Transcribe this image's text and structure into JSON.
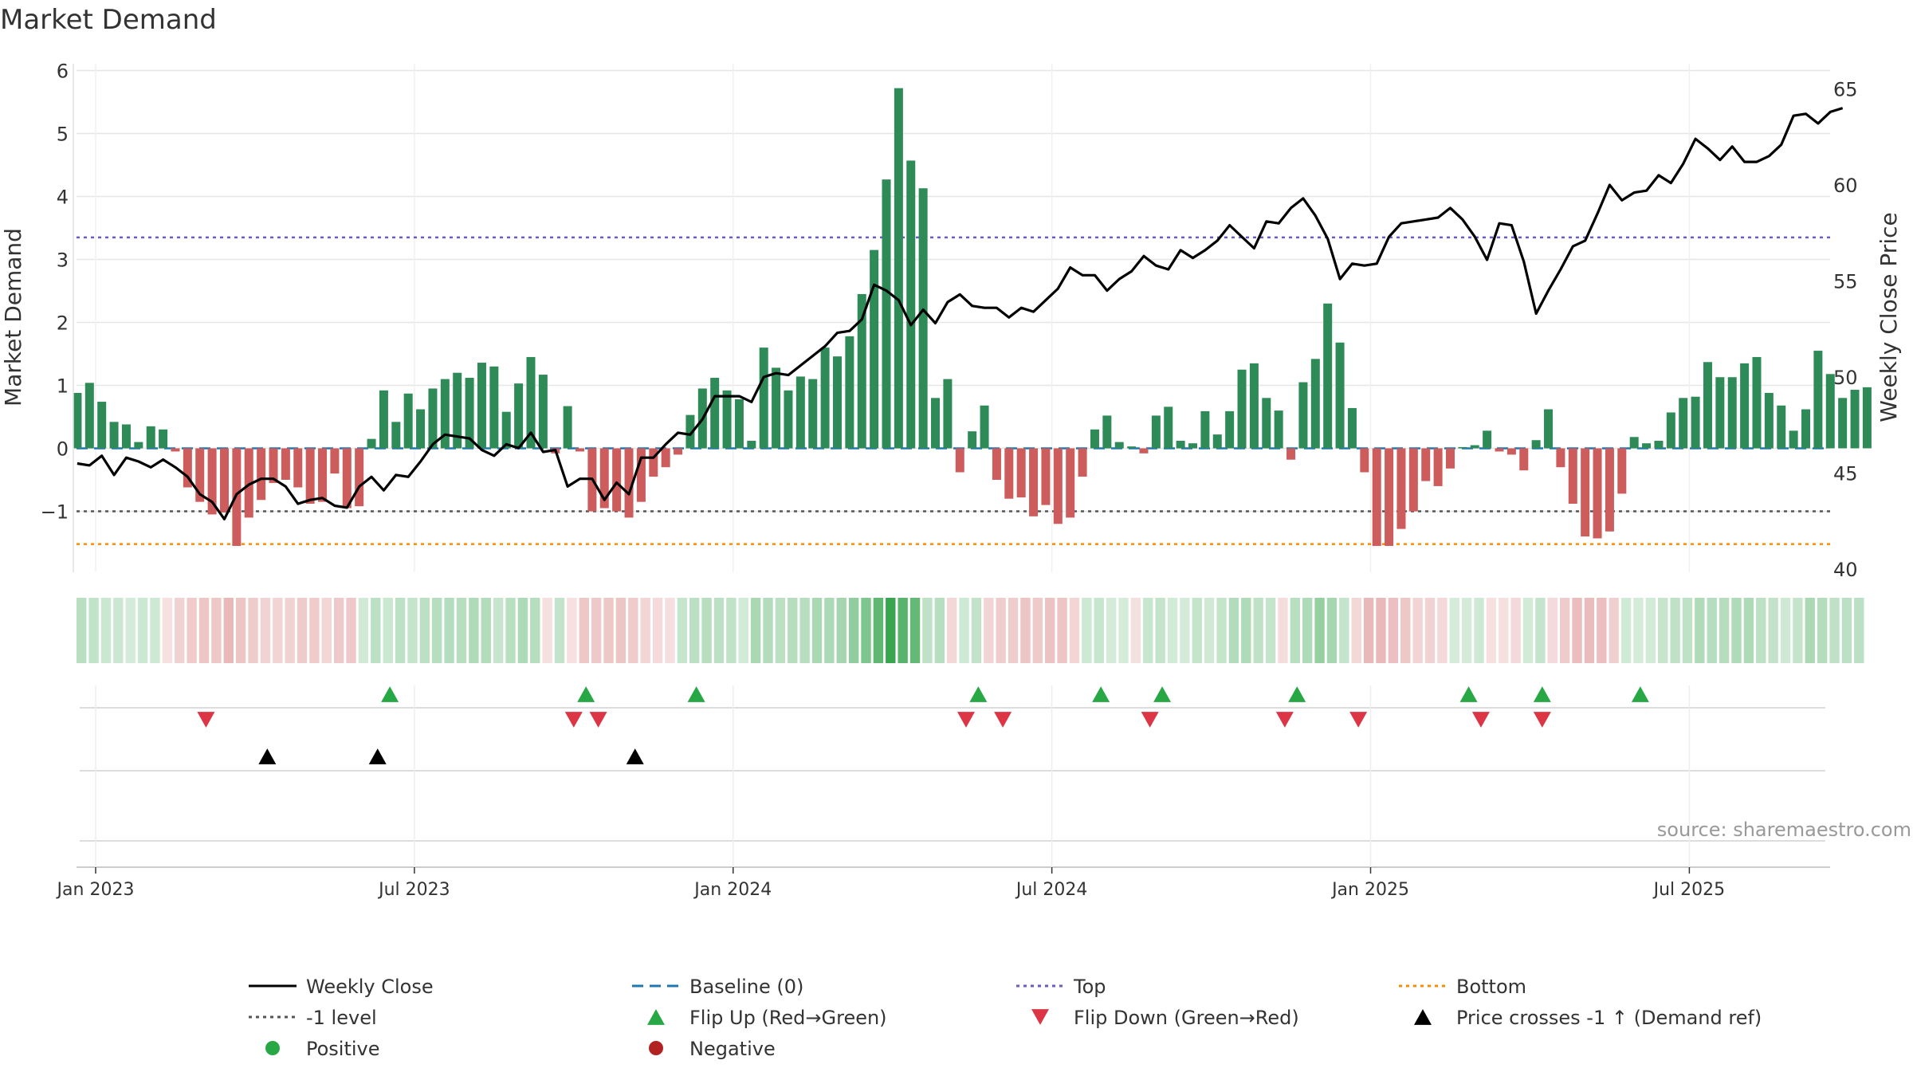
{
  "chart_data": {
    "type": "bar+line",
    "title": "Market Demand",
    "ylabel_left": "Market Demand",
    "ylabel_right": "Weekly Close Price",
    "ylim_left": [
      -2,
      6
    ],
    "ylim_right": [
      40,
      66
    ],
    "yticks_left": [
      {
        "value": 6,
        "label": "6"
      },
      {
        "value": 5,
        "label": "5"
      },
      {
        "value": 4,
        "label": "4"
      },
      {
        "value": 3,
        "label": "3"
      },
      {
        "value": 2,
        "label": "2"
      },
      {
        "value": 1,
        "label": "1"
      },
      {
        "value": 0,
        "label": "0"
      },
      {
        "value": -1,
        "label": "−1"
      }
    ],
    "yticks_right": [
      {
        "value": 65,
        "label": "65"
      },
      {
        "value": 60,
        "label": "60"
      },
      {
        "value": 55,
        "label": "55"
      },
      {
        "value": 50,
        "label": "50"
      },
      {
        "value": 45,
        "label": "45"
      },
      {
        "value": 40,
        "label": "40"
      }
    ],
    "xticks": [
      {
        "index": 0,
        "label": "Jan 2023"
      },
      {
        "index": 26,
        "label": "Jul 2023"
      },
      {
        "index": 52,
        "label": "Jan 2024"
      },
      {
        "index": 78,
        "label": "Jul 2024"
      },
      {
        "index": 104,
        "label": "Jan 2025"
      },
      {
        "index": 130,
        "label": "Jul 2025"
      }
    ],
    "week_offset": -1.5,
    "reference_lines": {
      "baseline": 0,
      "top": 3.35,
      "minus_one": -1,
      "bottom": -1.52
    },
    "demand": [
      0.88,
      1.04,
      0.74,
      0.42,
      0.38,
      0.1,
      0.35,
      0.3,
      -0.05,
      -0.62,
      -0.85,
      -1.05,
      -1.02,
      -1.55,
      -1.1,
      -0.82,
      -0.55,
      -0.5,
      -0.62,
      -0.88,
      -0.85,
      -0.4,
      -0.95,
      -0.92,
      0.15,
      0.92,
      0.42,
      0.87,
      0.62,
      0.95,
      1.1,
      1.2,
      1.12,
      1.36,
      1.3,
      0.58,
      1.03,
      1.45,
      1.17,
      -0.08,
      0.67,
      -0.05,
      -1.0,
      -0.95,
      -1.0,
      -1.1,
      -0.85,
      -0.45,
      -0.3,
      -0.1,
      0.53,
      0.95,
      1.12,
      0.92,
      0.78,
      0.12,
      1.6,
      1.28,
      0.92,
      1.14,
      1.1,
      1.6,
      1.46,
      1.78,
      2.45,
      3.15,
      4.27,
      5.72,
      4.57,
      4.13,
      0.8,
      1.1,
      -0.38,
      0.27,
      0.68,
      -0.5,
      -0.8,
      -0.78,
      -1.08,
      -0.9,
      -1.2,
      -1.1,
      -0.45,
      0.3,
      0.52,
      0.1,
      0.03,
      -0.08,
      0.52,
      0.66,
      0.12,
      0.08,
      0.59,
      0.22,
      0.59,
      1.25,
      1.35,
      0.8,
      0.6,
      -0.18,
      1.05,
      1.42,
      2.3,
      1.68,
      0.64,
      -0.38,
      -1.55,
      -1.55,
      -1.28,
      -1.0,
      -0.52,
      -0.6,
      -0.32,
      0.02,
      0.05,
      0.28,
      -0.05,
      -0.1,
      -0.35,
      0.13,
      0.62,
      -0.3,
      -0.88,
      -1.4,
      -1.43,
      -1.32,
      -0.72,
      0.18,
      0.08,
      0.12,
      0.57,
      0.8,
      0.82,
      1.37,
      1.13,
      1.13,
      1.35,
      1.45,
      0.88,
      0.68,
      0.28,
      0.62,
      1.55,
      1.18,
      0.8,
      0.93,
      0.97
    ],
    "close": [
      45.5,
      45.4,
      45.9,
      44.9,
      45.8,
      45.6,
      45.3,
      45.7,
      45.3,
      44.8,
      43.9,
      43.5,
      42.6,
      43.9,
      44.4,
      44.7,
      44.7,
      44.3,
      43.4,
      43.6,
      43.7,
      43.3,
      43.2,
      44.3,
      44.8,
      44.1,
      44.9,
      44.8,
      45.6,
      46.5,
      47.0,
      46.9,
      46.8,
      46.2,
      45.9,
      46.5,
      46.3,
      47.1,
      46.1,
      46.2,
      44.3,
      44.7,
      44.7,
      43.6,
      44.5,
      43.9,
      45.8,
      45.8,
      46.5,
      47.1,
      47.0,
      47.8,
      49.0,
      49.0,
      49.0,
      48.7,
      50.0,
      50.2,
      50.1,
      50.6,
      51.1,
      51.6,
      52.3,
      52.4,
      53.0,
      54.8,
      54.5,
      54.0,
      52.7,
      53.5,
      52.8,
      53.9,
      54.3,
      53.7,
      53.6,
      53.6,
      53.1,
      53.6,
      53.4,
      54.0,
      54.6,
      55.7,
      55.3,
      55.3,
      54.5,
      55.1,
      55.5,
      56.3,
      55.8,
      55.6,
      56.6,
      56.2,
      56.6,
      57.1,
      57.9,
      57.3,
      56.7,
      58.1,
      58.0,
      58.8,
      59.3,
      58.4,
      57.2,
      55.1,
      55.9,
      55.8,
      55.9,
      57.3,
      58.0,
      58.1,
      58.2,
      58.3,
      58.8,
      58.2,
      57.3,
      56.1,
      58.0,
      57.9,
      56.0,
      53.3,
      54.5,
      55.6,
      56.8,
      57.1,
      58.5,
      60.0,
      59.2,
      59.6,
      59.7,
      60.5,
      60.1,
      61.1,
      62.4,
      61.9,
      61.3,
      62.0,
      61.2,
      61.2,
      61.5,
      62.1,
      63.6,
      63.7,
      63.2,
      63.8,
      64.0
    ],
    "heat_strip": [
      1.04,
      0.74,
      0.42,
      0.38,
      0.1,
      0.35,
      0.3,
      -0.05,
      -0.62,
      -0.85,
      -1.05,
      -1.02,
      -1.55,
      -1.1,
      -0.82,
      -0.55,
      -0.5,
      -0.62,
      -0.88,
      -0.85,
      -0.4,
      -0.95,
      -0.92,
      0.15,
      0.92,
      0.42,
      0.87,
      0.62,
      0.95,
      1.1,
      1.2,
      1.12,
      1.36,
      1.3,
      0.58,
      1.03,
      1.45,
      1.17,
      -0.08,
      0.67,
      -0.05,
      -1.0,
      -0.95,
      -1.0,
      -1.1,
      -0.85,
      -0.45,
      -0.3,
      -0.1,
      0.53,
      0.95,
      1.12,
      0.92,
      0.78,
      0.12,
      1.6,
      1.28,
      0.92,
      1.14,
      1.1,
      1.6,
      1.46,
      1.78,
      2.45,
      3.15,
      4.27,
      5.72,
      4.57,
      4.13,
      0.8,
      1.1,
      -0.38,
      0.27,
      0.68,
      -0.5,
      -0.8,
      -0.78,
      -1.08,
      -0.9,
      -1.2,
      -1.1,
      -0.45,
      0.3,
      0.52,
      0.1,
      0.03,
      -0.08,
      0.52,
      0.66,
      0.12,
      0.08,
      0.59,
      0.22,
      0.59,
      1.25,
      1.35,
      0.8,
      0.6,
      -0.18,
      1.05,
      1.42,
      2.3,
      1.68,
      0.64,
      -0.38,
      -1.55,
      -1.55,
      -1.28,
      -1.0,
      -0.52,
      -0.6,
      -0.32,
      0.02,
      0.05,
      0.28,
      -0.05,
      -0.1,
      -0.35,
      0.13,
      0.62,
      -0.3,
      -0.88,
      -1.4,
      -1.43,
      -1.32,
      -0.72,
      0.18,
      0.08,
      0.12,
      0.57,
      0.8,
      0.82,
      1.37,
      1.13,
      1.13,
      1.35,
      1.45,
      0.88,
      0.68,
      0.28,
      0.62,
      1.55,
      1.18,
      0.8,
      0.93,
      0.97
    ],
    "flip_up_weeks": [
      23,
      39,
      48,
      71,
      81,
      86,
      97,
      111,
      117,
      125
    ],
    "flip_down_weeks": [
      8,
      38,
      40,
      70,
      73,
      85,
      96,
      102,
      112,
      117
    ],
    "price_cross_weeks": [
      14,
      23,
      44
    ],
    "source": "source: sharemaestro.com",
    "colors": {
      "positive": "#2e8b57",
      "negative": "#cd5c5c",
      "line": "#000000",
      "baseline": "#1f77b4",
      "top": "#6a5acd",
      "minus_one": "#555555",
      "bottom": "#ff8c00",
      "flip_up": "#28a745",
      "flip_down": "#dc3545",
      "cross": "#000000",
      "legend_positive": "#28a745",
      "legend_negative": "#b22222"
    },
    "legend": [
      {
        "label": "Weekly Close",
        "symbol": "line",
        "color": "#000000"
      },
      {
        "label": "Baseline (0)",
        "symbol": "dash",
        "color": "#1f77b4"
      },
      {
        "label": "Top",
        "symbol": "dot",
        "color": "#6a5acd"
      },
      {
        "label": "Bottom",
        "symbol": "dot",
        "color": "#ff8c00"
      },
      {
        "label": "-1 level",
        "symbol": "dot",
        "color": "#555555"
      },
      {
        "label": "Flip Up (Red→Green)",
        "symbol": "tri-up",
        "color": "#28a745"
      },
      {
        "label": "Flip Down (Green→Red)",
        "symbol": "tri-down",
        "color": "#dc3545"
      },
      {
        "label": "Price crosses -1 ↑ (Demand ref)",
        "symbol": "tri-up",
        "color": "#000000"
      },
      {
        "label": "Positive",
        "symbol": "circle",
        "color": "#28a745"
      },
      {
        "label": "Negative",
        "symbol": "circle",
        "color": "#b22222"
      }
    ]
  }
}
